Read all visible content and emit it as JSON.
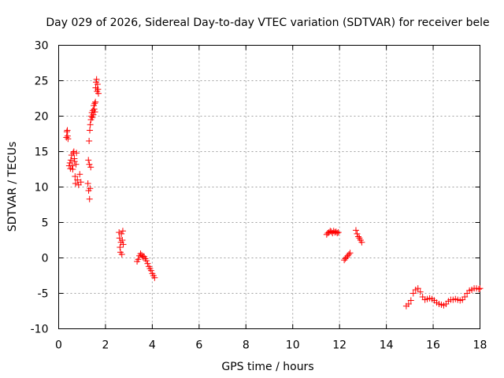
{
  "chart_data": {
    "type": "scatter",
    "title": "Day 029 of 2026, Sidereal Day-to-day VTEC variation (SDTVAR) for receiver bele",
    "xlabel": "GPS time / hours",
    "ylabel": "SDTVAR / TECUs",
    "xlim": [
      0,
      18
    ],
    "ylim": [
      -10,
      30
    ],
    "xticks": [
      "0",
      "2",
      "4",
      "6",
      "8",
      "10",
      "12",
      "14",
      "16",
      "18"
    ],
    "yticks": [
      "-10",
      "-5",
      "0",
      "5",
      "10",
      "15",
      "20",
      "25",
      "30"
    ],
    "grid": true,
    "marker": "+",
    "marker_color": "#ff0000",
    "series": [
      {
        "name": "SDTVAR",
        "x": [
          0.33,
          0.35,
          0.37,
          0.38,
          0.4,
          0.45,
          0.48,
          0.5,
          0.52,
          0.55,
          0.57,
          0.6,
          0.62,
          0.65,
          0.67,
          0.68,
          0.7,
          0.72,
          0.74,
          0.76,
          0.8,
          0.85,
          0.9,
          0.95,
          1.25,
          1.27,
          1.28,
          1.3,
          1.31,
          1.32,
          1.33,
          1.34,
          1.35,
          1.37,
          1.38,
          1.4,
          1.42,
          1.44,
          1.46,
          1.48,
          1.5,
          1.52,
          1.54,
          1.55,
          1.57,
          1.58,
          1.6,
          1.62,
          1.64,
          1.66,
          1.68,
          1.7,
          2.58,
          2.6,
          2.62,
          2.64,
          2.66,
          2.68,
          2.7,
          2.72,
          2.74,
          2.76,
          3.35,
          3.4,
          3.45,
          3.5,
          3.55,
          3.6,
          3.65,
          3.7,
          3.75,
          3.8,
          3.85,
          3.9,
          3.95,
          4.0,
          4.05,
          4.1,
          11.45,
          11.5,
          11.55,
          11.6,
          11.65,
          11.7,
          11.75,
          11.8,
          11.85,
          11.9,
          11.95,
          12.2,
          12.25,
          12.3,
          12.35,
          12.4,
          12.45,
          12.7,
          12.75,
          12.8,
          12.85,
          12.9,
          12.95,
          14.85,
          14.95,
          15.05,
          15.15,
          15.25,
          15.35,
          15.45,
          15.55,
          15.65,
          15.75,
          15.85,
          15.95,
          16.05,
          16.15,
          16.25,
          16.35,
          16.45,
          16.55,
          16.65,
          16.75,
          16.85,
          16.95,
          17.05,
          17.15,
          17.25,
          17.35,
          17.45,
          17.55,
          17.65,
          17.75,
          17.85,
          17.95,
          18.0
        ],
        "y": [
          17.0,
          17.8,
          18.0,
          17.2,
          16.8,
          13.0,
          13.4,
          12.6,
          13.8,
          14.5,
          13.0,
          12.5,
          14.8,
          15.0,
          14.0,
          13.6,
          11.5,
          10.5,
          13.2,
          14.8,
          11.0,
          10.3,
          11.8,
          10.7,
          10.5,
          13.8,
          9.5,
          16.5,
          13.2,
          8.3,
          18.0,
          9.8,
          18.8,
          12.8,
          19.5,
          20.0,
          20.5,
          19.8,
          20.8,
          20.2,
          21.5,
          21.0,
          21.8,
          20.6,
          22.0,
          24.0,
          24.8,
          25.2,
          23.5,
          24.5,
          23.8,
          23.2,
          3.6,
          2.8,
          1.5,
          0.8,
          2.2,
          3.4,
          0.5,
          2.5,
          3.8,
          1.9,
          -0.5,
          -0.2,
          0.3,
          0.6,
          0.4,
          0.1,
          0.2,
          -0.1,
          -0.4,
          -0.8,
          -1.2,
          -1.5,
          -1.8,
          -2.2,
          -2.5,
          -2.8,
          3.3,
          3.5,
          3.6,
          3.8,
          3.7,
          3.5,
          3.8,
          3.6,
          3.7,
          3.5,
          3.6,
          -0.3,
          -0.1,
          0.1,
          0.3,
          0.5,
          0.7,
          3.9,
          3.4,
          3.0,
          2.8,
          2.5,
          2.2,
          -6.8,
          -6.5,
          -6.0,
          -5.0,
          -4.5,
          -4.3,
          -4.8,
          -5.5,
          -5.9,
          -5.8,
          -5.7,
          -5.8,
          -6.0,
          -6.3,
          -6.5,
          -6.6,
          -6.7,
          -6.5,
          -6.1,
          -5.9,
          -5.9,
          -5.8,
          -5.9,
          -6.0,
          -5.9,
          -5.5,
          -5.0,
          -4.6,
          -4.5,
          -4.3,
          -4.3,
          -4.4,
          -4.3
        ]
      }
    ]
  }
}
